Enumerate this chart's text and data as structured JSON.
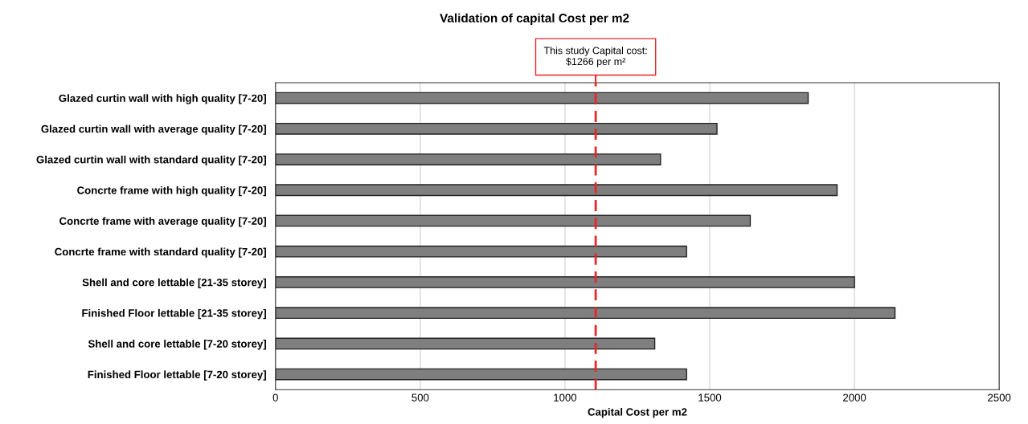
{
  "chart_data": {
    "type": "bar",
    "orientation": "horizontal",
    "title": "Validation of capital Cost per m2",
    "xlabel": "Capital Cost per m2",
    "categories": [
      "Glazed curtin wall with high quality [7-20]",
      "Glazed curtin wall with average quality [7-20]",
      "Glazed curtin wall with standard quality [7-20]",
      "Concrte frame with high quality [7-20]",
      "Concrte frame with average quality [7-20]",
      "Concrte frame with standard quality [7-20]",
      "Shell and core lettable [21-35 storey]",
      "Finished Floor lettable [21-35 storey]",
      "Shell and core lettable [7-20 storey]",
      "Finished Floor lettable [7-20 storey]"
    ],
    "values": [
      1840,
      1525,
      1330,
      1940,
      1640,
      1420,
      2000,
      2140,
      1310,
      1420
    ],
    "color": "#7f7f7f",
    "xlim": [
      0,
      2500
    ],
    "xticks": [
      0,
      500,
      1000,
      1500,
      2000,
      2500
    ],
    "grid": "x",
    "ref_lines": [
      {
        "axis": "x",
        "value": 1106,
        "color": "#e8262a",
        "line_style": "dashed"
      }
    ],
    "annotations": [
      "This study Capital cost:\n$1266 per m²"
    ]
  }
}
